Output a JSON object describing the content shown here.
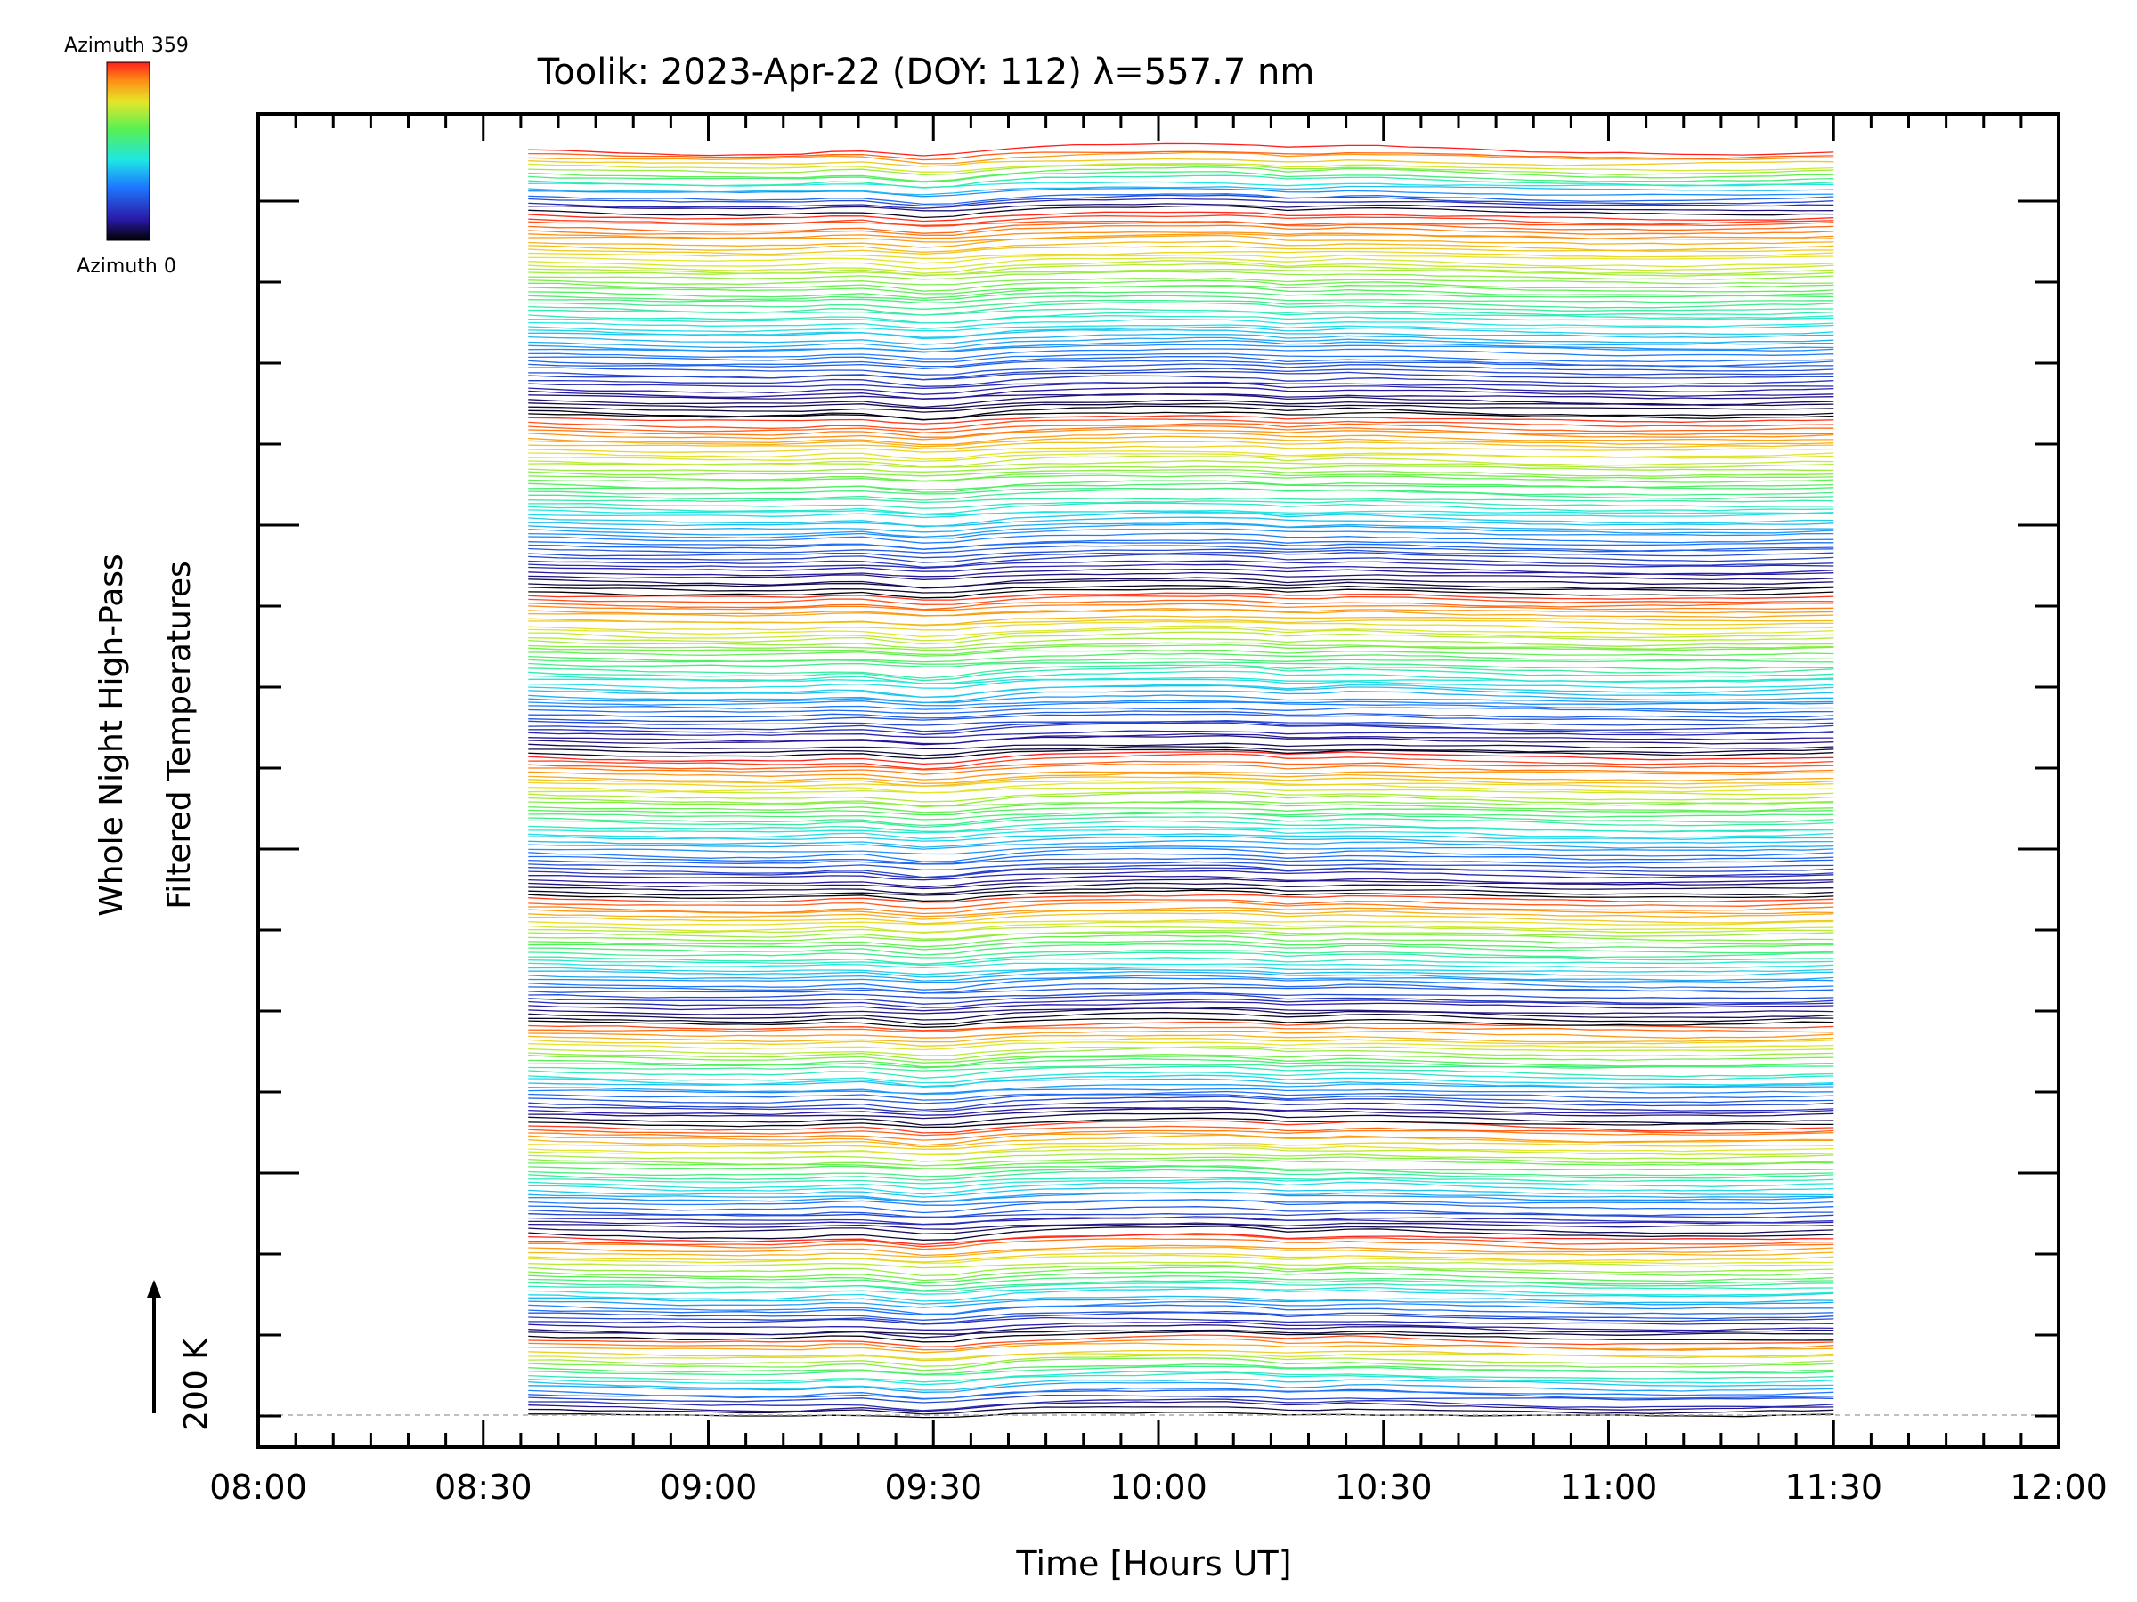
{
  "chart_data": {
    "type": "line",
    "title": "Toolik: 2023-Apr-22 (DOY: 112) λ=557.7 nm",
    "xlabel": "Time [Hours UT]",
    "ylabel": [
      "Whole Night High-Pass",
      "Filtered Temperatures"
    ],
    "scale_bar": {
      "label": "200 K",
      "value": 200,
      "unit": "K"
    },
    "colorbar": {
      "top_label": "Azimuth 359",
      "bottom_label": "Azimuth 0",
      "min": 0,
      "max": 359,
      "colormap": "rainbow"
    },
    "x_ticks": [
      "08:00",
      "08:30",
      "09:00",
      "09:30",
      "10:00",
      "10:30",
      "11:00",
      "11:30",
      "12:00"
    ],
    "xlim": [
      8.0,
      12.0
    ],
    "data_time_range": [
      8.6,
      11.5
    ],
    "grid": false,
    "series_count": 330,
    "trace_bands": [
      {
        "azimuth_sequence": "0-359",
        "stack_start": 0.0,
        "stack_end": 0.06
      },
      {
        "azimuth_sequence": "0-359",
        "stack_start": 0.06,
        "stack_end": 0.14
      },
      {
        "azimuth_sequence": "0-359",
        "stack_start": 0.14,
        "stack_end": 0.23
      },
      {
        "azimuth_sequence": "0-359",
        "stack_start": 0.23,
        "stack_end": 0.31
      },
      {
        "azimuth_sequence": "0-359",
        "stack_start": 0.31,
        "stack_end": 0.41
      },
      {
        "azimuth_sequence": "0-359",
        "stack_start": 0.41,
        "stack_end": 0.52
      },
      {
        "azimuth_sequence": "0-359",
        "stack_start": 0.52,
        "stack_end": 0.65
      },
      {
        "azimuth_sequence": "0-359",
        "stack_start": 0.65,
        "stack_end": 0.79
      },
      {
        "azimuth_sequence": "0-359",
        "stack_start": 0.79,
        "stack_end": 0.95
      },
      {
        "azimuth_sequence": "0-359",
        "stack_start": 0.95,
        "stack_end": 1.0
      }
    ],
    "colors": {
      "axis": "#000000",
      "baseline": "#aaaaaa"
    }
  }
}
